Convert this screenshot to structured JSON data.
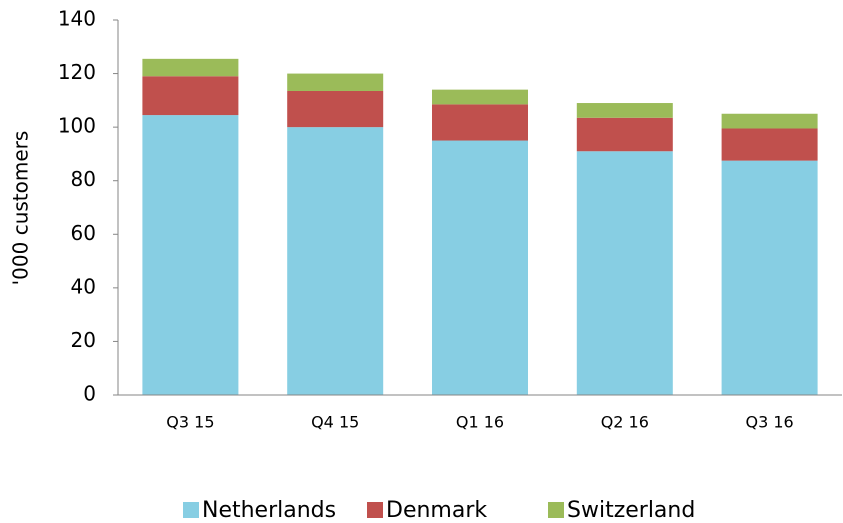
{
  "chart_data": {
    "type": "stacked_bar",
    "ylabel": "'000 customers",
    "categories": [
      "Q3 15",
      "Q4 15",
      "Q1 16",
      "Q2 16",
      "Q3 16"
    ],
    "series": [
      {
        "name": "Netherlands",
        "color": "#87cee3",
        "values": [
          104.5,
          100,
          95,
          91,
          87.5
        ]
      },
      {
        "name": "Denmark",
        "color": "#c0504d",
        "values": [
          14.5,
          13.5,
          13.5,
          12.5,
          12
        ]
      },
      {
        "name": "Switzerland",
        "color": "#9bbb59",
        "values": [
          6.5,
          6.5,
          5.5,
          5.5,
          5.5
        ]
      }
    ],
    "ylim": [
      0,
      140
    ],
    "yticks": [
      0,
      20,
      40,
      60,
      80,
      100,
      120,
      140
    ],
    "grid": false,
    "legend": "bottom"
  }
}
